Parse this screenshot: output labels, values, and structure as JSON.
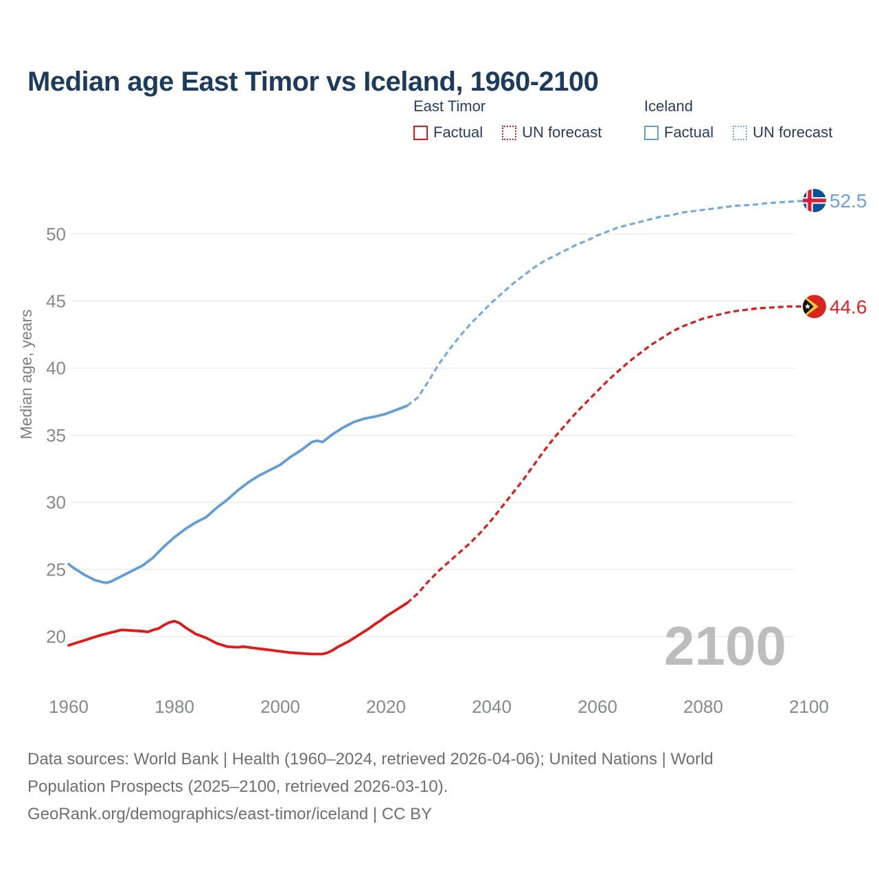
{
  "title": "Median age East Timor vs Iceland, 1960-2100",
  "legend": {
    "groups": [
      {
        "name": "East Timor",
        "items": [
          {
            "label": "Factual",
            "style": "solid",
            "color": "#ec1313"
          },
          {
            "label": "UN forecast",
            "style": "dotted",
            "color": "#ec1313"
          }
        ]
      },
      {
        "name": "Iceland",
        "items": [
          {
            "label": "Factual",
            "style": "solid",
            "color": "#5f9ddb"
          },
          {
            "label": "UN forecast",
            "style": "dotted",
            "color": "#74aae4"
          }
        ]
      }
    ]
  },
  "watermark": "2100",
  "footer": {
    "lines": [
      "Data sources: World Bank | Health (1960–2024, retrieved 2026-04-06); United Nations | World",
      "Population Prospects (2025–2100, retrieved 2026-03-10).",
      "GeoRank.org/demographics/east-timor/iceland | CC BY"
    ]
  },
  "chart_data": {
    "type": "line",
    "title": "Median age East Timor vs Iceland, 1960-2100",
    "xlabel": "",
    "ylabel": "Median age, years",
    "xlim": [
      1960,
      2100
    ],
    "ylim": [
      17.5,
      54
    ],
    "xticks": [
      1960,
      1980,
      2000,
      2020,
      2040,
      2060,
      2080,
      2100
    ],
    "yticks": [
      20,
      25,
      30,
      35,
      40,
      45,
      50
    ],
    "grid": "horizontal",
    "legend_position": "top-right",
    "series": [
      {
        "name": "Iceland factual",
        "color": "#5f9ddb",
        "dash": "solid",
        "x": [
          1960,
          1961,
          1962,
          1963,
          1964,
          1965,
          1966,
          1967,
          1968,
          1969,
          1970,
          1972,
          1974,
          1975,
          1976,
          1978,
          1980,
          1982,
          1984,
          1986,
          1988,
          1990,
          1992,
          1994,
          1996,
          1998,
          2000,
          2002,
          2004,
          2006,
          2007,
          2008,
          2009,
          2010,
          2012,
          2014,
          2016,
          2018,
          2020,
          2022,
          2024
        ],
        "y": [
          25.4,
          25.1,
          24.85,
          24.6,
          24.4,
          24.2,
          24.1,
          24.0,
          24.1,
          24.3,
          24.5,
          24.9,
          25.3,
          25.6,
          25.9,
          26.7,
          27.4,
          28.0,
          28.5,
          28.9,
          29.6,
          30.2,
          30.9,
          31.5,
          32.0,
          32.4,
          32.8,
          33.4,
          33.9,
          34.5,
          34.6,
          34.5,
          34.8,
          35.1,
          35.6,
          36.0,
          36.25,
          36.4,
          36.6,
          36.9,
          37.2
        ]
      },
      {
        "name": "Iceland UN forecast",
        "color": "#74aae4",
        "dash": "dashed",
        "x": [
          2024,
          2026,
          2028,
          2030,
          2032,
          2034,
          2036,
          2038,
          2040,
          2042,
          2044,
          2046,
          2048,
          2050,
          2052,
          2054,
          2056,
          2058,
          2060,
          2062,
          2064,
          2066,
          2068,
          2070,
          2072,
          2074,
          2076,
          2078,
          2080,
          2082,
          2084,
          2086,
          2088,
          2090,
          2092,
          2094,
          2096,
          2098,
          2100
        ],
        "y": [
          37.2,
          37.8,
          39.0,
          40.3,
          41.4,
          42.4,
          43.3,
          44.1,
          44.9,
          45.6,
          46.3,
          46.9,
          47.5,
          48.0,
          48.4,
          48.8,
          49.2,
          49.5,
          49.9,
          50.2,
          50.5,
          50.7,
          50.9,
          51.1,
          51.3,
          51.4,
          51.6,
          51.7,
          51.8,
          51.9,
          52.0,
          52.1,
          52.15,
          52.2,
          52.3,
          52.35,
          52.4,
          52.45,
          52.5
        ]
      },
      {
        "name": "East Timor factual",
        "color": "#ec1313",
        "dash": "solid",
        "x": [
          1960,
          1962,
          1964,
          1966,
          1968,
          1970,
          1972,
          1974,
          1975,
          1976,
          1977,
          1978,
          1979,
          1980,
          1981,
          1982,
          1984,
          1986,
          1988,
          1990,
          1992,
          1993,
          1994,
          1996,
          1998,
          2000,
          2002,
          2004,
          2006,
          2008,
          2009,
          2010,
          2011,
          2012,
          2013,
          2014,
          2015,
          2016,
          2017,
          2018,
          2019,
          2020,
          2021,
          2022,
          2023,
          2024
        ],
        "y": [
          19.35,
          19.6,
          19.85,
          20.1,
          20.3,
          20.5,
          20.45,
          20.4,
          20.35,
          20.5,
          20.6,
          20.85,
          21.05,
          21.15,
          21.0,
          20.7,
          20.2,
          19.9,
          19.5,
          19.25,
          19.2,
          19.25,
          19.2,
          19.1,
          19.0,
          18.9,
          18.8,
          18.75,
          18.7,
          18.7,
          18.8,
          19.0,
          19.25,
          19.45,
          19.65,
          19.9,
          20.15,
          20.4,
          20.65,
          20.95,
          21.2,
          21.5,
          21.75,
          22.0,
          22.25,
          22.5
        ]
      },
      {
        "name": "East Timor UN forecast",
        "color": "#ec1313",
        "dash": "dashed",
        "x": [
          2024,
          2026,
          2028,
          2030,
          2032,
          2034,
          2036,
          2038,
          2040,
          2042,
          2044,
          2046,
          2048,
          2050,
          2052,
          2054,
          2056,
          2058,
          2060,
          2062,
          2064,
          2066,
          2068,
          2070,
          2072,
          2074,
          2076,
          2078,
          2080,
          2082,
          2084,
          2086,
          2088,
          2090,
          2092,
          2094,
          2096,
          2098,
          2100
        ],
        "y": [
          22.5,
          23.2,
          24.1,
          24.9,
          25.6,
          26.3,
          27.0,
          27.8,
          28.7,
          29.7,
          30.7,
          31.7,
          32.8,
          33.9,
          34.9,
          35.8,
          36.7,
          37.5,
          38.3,
          39.1,
          39.8,
          40.5,
          41.1,
          41.7,
          42.2,
          42.7,
          43.1,
          43.4,
          43.7,
          43.9,
          44.1,
          44.25,
          44.35,
          44.45,
          44.5,
          44.55,
          44.6,
          44.6,
          44.6
        ]
      }
    ],
    "end_labels": [
      {
        "series": "Iceland UN forecast",
        "value": "52.5",
        "color": "#68a2df",
        "flag": "iceland"
      },
      {
        "series": "East Timor UN forecast",
        "value": "44.6",
        "color": "#ed1c24",
        "flag": "east-timor"
      }
    ]
  }
}
